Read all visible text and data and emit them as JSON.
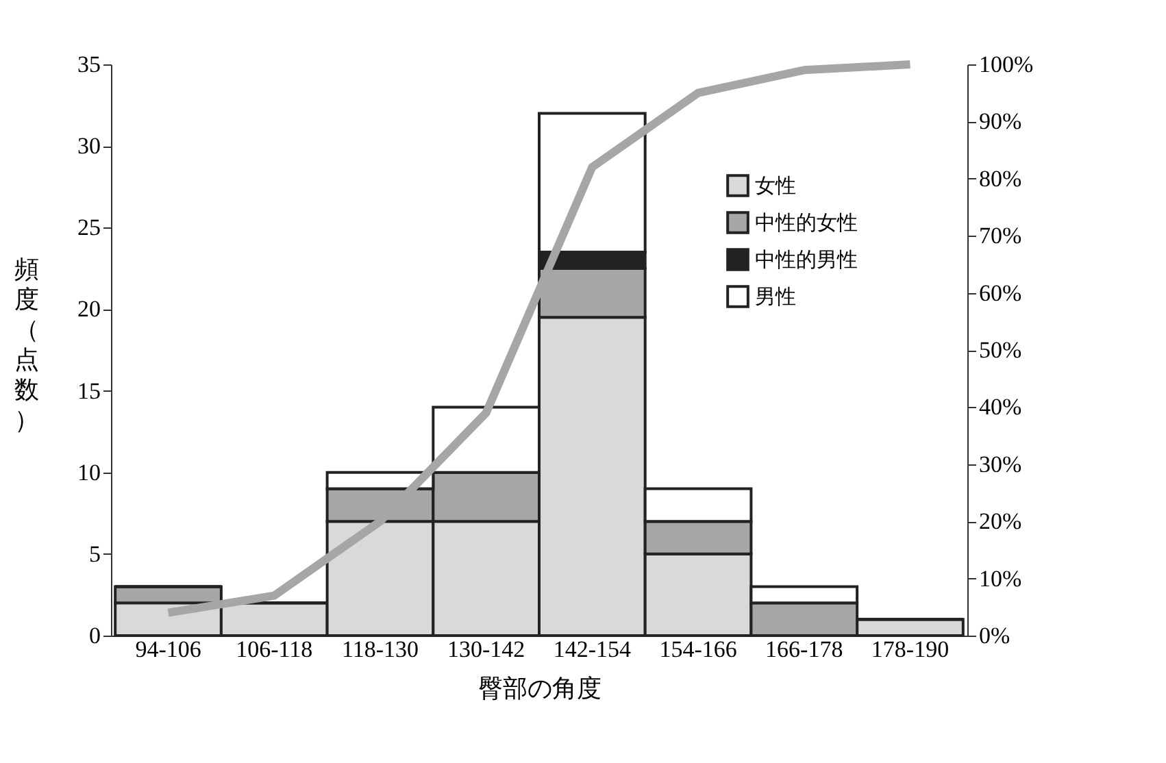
{
  "chart_data": {
    "type": "bar",
    "stacked": true,
    "xlabel": "臀部の角度",
    "ylabel": "頻度（点数）",
    "categories": [
      "94-106",
      "106-118",
      "118-130",
      "130-142",
      "142-154",
      "154-166",
      "166-178",
      "178-190"
    ],
    "series": [
      {
        "name": "女性",
        "color": "#d9d9d9",
        "values": [
          2,
          2,
          7,
          7,
          19.5,
          5,
          0,
          1
        ]
      },
      {
        "name": "中性的女性",
        "color": "#a6a6a6",
        "values": [
          1,
          0,
          2,
          3,
          3,
          2,
          2,
          0
        ]
      },
      {
        "name": "中性的男性",
        "color": "#222222",
        "values": [
          0,
          0,
          0,
          0,
          1,
          0,
          0,
          0
        ]
      },
      {
        "name": "男性",
        "color": "#ffffff",
        "values": [
          0,
          0,
          1,
          4,
          8.5,
          2,
          1,
          0
        ]
      },
      {
        "type": "line",
        "axis": "y2",
        "color": "#a6a6a6",
        "values": [
          4,
          7,
          20,
          39,
          82,
          95,
          99,
          100
        ]
      }
    ],
    "ylim": [
      0,
      35
    ],
    "yticks": [
      0,
      5,
      10,
      15,
      20,
      25,
      30,
      35
    ],
    "y2lim": [
      0,
      100
    ],
    "y2ticks": [
      {
        "value": 0,
        "label": "0%"
      },
      {
        "value": 10,
        "label": "10%"
      },
      {
        "value": 20,
        "label": "20%"
      },
      {
        "value": 30,
        "label": "30%"
      },
      {
        "value": 40,
        "label": "40%"
      },
      {
        "value": 50,
        "label": "50%"
      },
      {
        "value": 60,
        "label": "60%"
      },
      {
        "value": 70,
        "label": "70%"
      },
      {
        "value": 80,
        "label": "80%"
      },
      {
        "value": 90,
        "label": "90%"
      },
      {
        "value": 100,
        "label": "100%"
      }
    ],
    "legend": "top right",
    "grid": false
  }
}
